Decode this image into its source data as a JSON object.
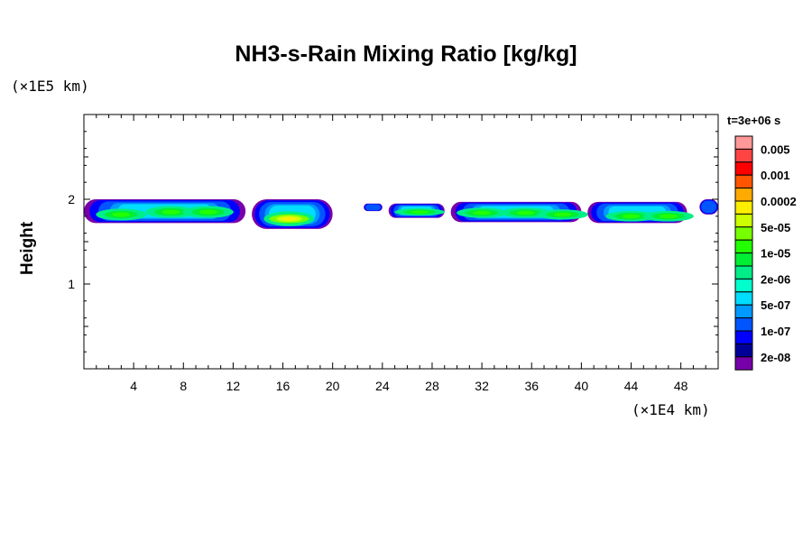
{
  "chart_data": {
    "type": "heatmap",
    "title": "NH3-s-Rain Mixing Ratio [kg/kg]",
    "ylabel": "Height",
    "xlabel": "",
    "x_unit": "(×1E4 km)",
    "y_unit": "(×1E5 km)",
    "time_label": "t=3e+06 s",
    "xlim": [
      0,
      51
    ],
    "ylim": [
      0,
      3
    ],
    "xticks": [
      4,
      8,
      12,
      16,
      20,
      24,
      28,
      32,
      36,
      40,
      44,
      48
    ],
    "yticks": [
      1,
      2
    ],
    "colorbar": {
      "labels": [
        "0.005",
        "0.001",
        "0.0002",
        "5e-05",
        "1e-05",
        "2e-06",
        "5e-07",
        "1e-07",
        "2e-08"
      ],
      "colors": [
        "#ff9999",
        "#ff4444",
        "#ff0000",
        "#ff5500",
        "#ffaa00",
        "#ffee00",
        "#ccff00",
        "#77ff00",
        "#22ff00",
        "#00ee33",
        "#00ee88",
        "#00ffcc",
        "#00ddff",
        "#0099ff",
        "#0055ff",
        "#0000ff",
        "#000099",
        "#7700aa"
      ]
    },
    "features": [
      {
        "x": [
          0,
          13
        ],
        "y": [
          1.72,
          2.0
        ],
        "peak_level": 8,
        "cores": [
          [
            3,
            1.82
          ],
          [
            7,
            1.85
          ],
          [
            10,
            1.85
          ]
        ]
      },
      {
        "x": [
          13.5,
          20
        ],
        "y": [
          1.65,
          2.0
        ],
        "peak_level": 5,
        "cores": [
          [
            16.5,
            1.77
          ]
        ]
      },
      {
        "x": [
          22.5,
          24
        ],
        "y": [
          1.86,
          1.95
        ],
        "peak_level": 14,
        "cores": []
      },
      {
        "x": [
          24.5,
          29
        ],
        "y": [
          1.78,
          1.95
        ],
        "peak_level": 8,
        "cores": [
          [
            27,
            1.85
          ]
        ]
      },
      {
        "x": [
          29.5,
          40
        ],
        "y": [
          1.73,
          1.97
        ],
        "peak_level": 8,
        "cores": [
          [
            32,
            1.84
          ],
          [
            35.5,
            1.84
          ],
          [
            38.5,
            1.82
          ]
        ]
      },
      {
        "x": [
          40.5,
          48.5
        ],
        "y": [
          1.72,
          1.97
        ],
        "peak_level": 8,
        "cores": [
          [
            44,
            1.8
          ],
          [
            47,
            1.8
          ]
        ]
      },
      {
        "x": [
          49.5,
          51
        ],
        "y": [
          1.82,
          2.0
        ],
        "peak_level": 14,
        "cores": []
      }
    ]
  }
}
